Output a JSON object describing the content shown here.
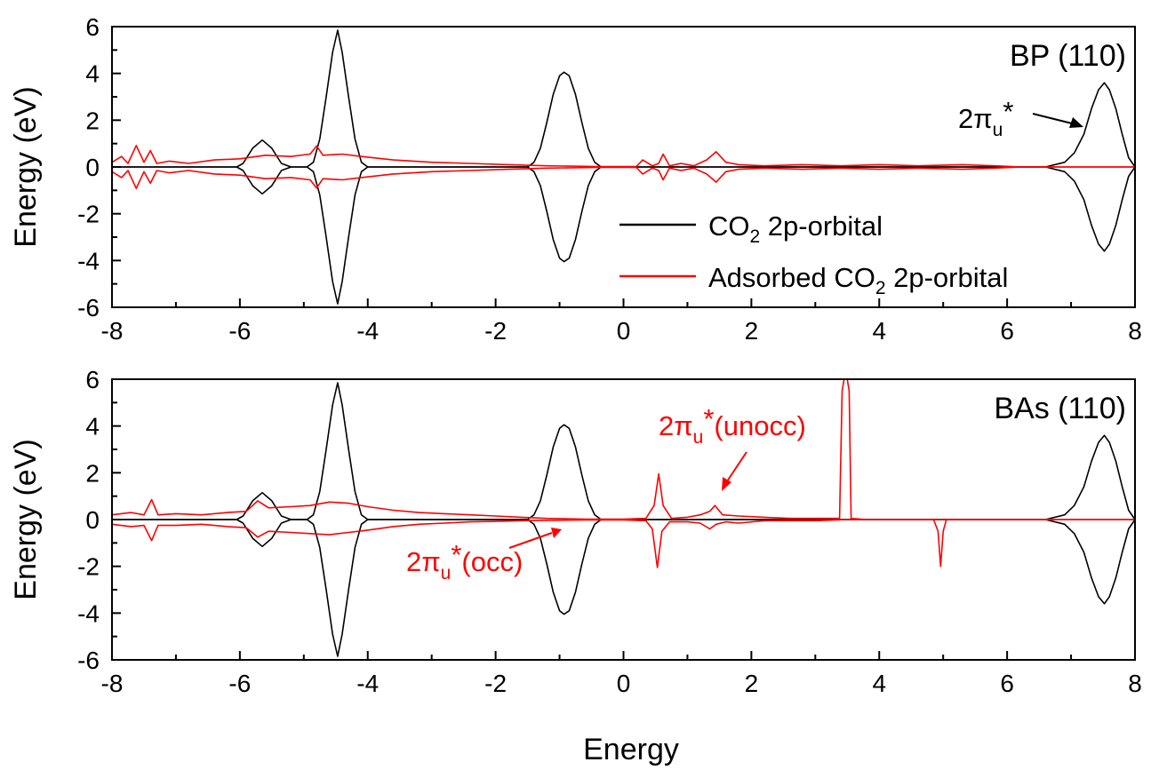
{
  "figure": {
    "xlabel": "Energy"
  },
  "chart_data": [
    {
      "type": "line",
      "title": "BP (110)",
      "xlabel": "",
      "ylabel": "Energy (eV)",
      "xlim": [
        -8,
        8
      ],
      "ylim": [
        -6,
        6
      ],
      "x_ticks": [
        -8,
        -6,
        -4,
        -2,
        0,
        2,
        4,
        6,
        8
      ],
      "y_ticks": [
        -6,
        -4,
        -2,
        0,
        2,
        4,
        6
      ],
      "grid": false,
      "legend_position": "lower-right",
      "series": [
        {
          "name": "CO2 2p-orbital",
          "color": "#000000",
          "symmetric_about_zero": true,
          "points": [
            [
              -8,
              0
            ],
            [
              -6.05,
              0
            ],
            [
              -5.95,
              0.15
            ],
            [
              -5.8,
              0.8
            ],
            [
              -5.65,
              1.15
            ],
            [
              -5.5,
              0.8
            ],
            [
              -5.35,
              0.15
            ],
            [
              -5.2,
              0
            ],
            [
              -4.95,
              0
            ],
            [
              -4.85,
              0.2
            ],
            [
              -4.75,
              1.2
            ],
            [
              -4.65,
              3.0
            ],
            [
              -4.55,
              4.9
            ],
            [
              -4.47,
              5.85
            ],
            [
              -4.4,
              4.9
            ],
            [
              -4.3,
              3.0
            ],
            [
              -4.2,
              1.2
            ],
            [
              -4.1,
              0.2
            ],
            [
              -4.0,
              0
            ],
            [
              -1.5,
              0
            ],
            [
              -1.4,
              0.2
            ],
            [
              -1.3,
              0.8
            ],
            [
              -1.2,
              1.9
            ],
            [
              -1.1,
              3.1
            ],
            [
              -1.0,
              3.9
            ],
            [
              -0.93,
              4.05
            ],
            [
              -0.85,
              3.9
            ],
            [
              -0.75,
              3.1
            ],
            [
              -0.65,
              1.9
            ],
            [
              -0.55,
              0.8
            ],
            [
              -0.45,
              0.2
            ],
            [
              -0.35,
              0
            ],
            [
              6.6,
              0
            ],
            [
              6.9,
              0.2
            ],
            [
              7.05,
              0.6
            ],
            [
              7.2,
              1.4
            ],
            [
              7.32,
              2.5
            ],
            [
              7.43,
              3.3
            ],
            [
              7.52,
              3.6
            ],
            [
              7.6,
              3.3
            ],
            [
              7.7,
              2.5
            ],
            [
              7.8,
              1.4
            ],
            [
              7.9,
              0.4
            ],
            [
              8.0,
              0
            ]
          ]
        },
        {
          "name": "Adsorbed CO2 2p-orbital",
          "color": "#ff0000",
          "symmetric_about_zero": true,
          "points": [
            [
              -8,
              0.2
            ],
            [
              -7.85,
              0.45
            ],
            [
              -7.75,
              0.15
            ],
            [
              -7.62,
              0.92
            ],
            [
              -7.5,
              0.2
            ],
            [
              -7.4,
              0.7
            ],
            [
              -7.3,
              0.15
            ],
            [
              -7.1,
              0.25
            ],
            [
              -6.8,
              0.15
            ],
            [
              -6.4,
              0.3
            ],
            [
              -6.0,
              0.35
            ],
            [
              -5.6,
              0.5
            ],
            [
              -5.2,
              0.45
            ],
            [
              -4.9,
              0.55
            ],
            [
              -4.8,
              0.9
            ],
            [
              -4.7,
              0.5
            ],
            [
              -4.4,
              0.55
            ],
            [
              -4.1,
              0.45
            ],
            [
              -3.6,
              0.3
            ],
            [
              -3.0,
              0.2
            ],
            [
              -2.4,
              0.15
            ],
            [
              -1.8,
              0.1
            ],
            [
              -1.2,
              0.05
            ],
            [
              -0.4,
              0.02
            ],
            [
              0.2,
              0.02
            ],
            [
              0.3,
              0.3
            ],
            [
              0.45,
              0.05
            ],
            [
              0.55,
              0.15
            ],
            [
              0.62,
              0.55
            ],
            [
              0.72,
              0.05
            ],
            [
              0.9,
              0.15
            ],
            [
              1.1,
              0.05
            ],
            [
              1.3,
              0.3
            ],
            [
              1.45,
              0.65
            ],
            [
              1.6,
              0.2
            ],
            [
              1.8,
              0.1
            ],
            [
              2.2,
              0.05
            ],
            [
              2.8,
              0.1
            ],
            [
              3.4,
              0.05
            ],
            [
              4.0,
              0.1
            ],
            [
              4.6,
              0.05
            ],
            [
              5.3,
              0.1
            ],
            [
              5.8,
              0.05
            ],
            [
              6.2,
              0
            ],
            [
              8.0,
              0
            ]
          ]
        }
      ],
      "annotations": [
        {
          "text": "2πu*",
          "points_to": [
            7.3,
            1.7
          ],
          "color": "#000000"
        }
      ]
    },
    {
      "type": "line",
      "title": "BAs (110)",
      "xlabel": "Energy",
      "ylabel": "Energy (eV)",
      "xlim": [
        -8,
        8
      ],
      "ylim": [
        -6,
        6
      ],
      "x_ticks": [
        -8,
        -6,
        -4,
        -2,
        0,
        2,
        4,
        6,
        8
      ],
      "y_ticks": [
        -6,
        -4,
        -2,
        0,
        2,
        4,
        6
      ],
      "grid": false,
      "series": [
        {
          "name": "CO2 2p-orbital",
          "color": "#000000",
          "symmetric_about_zero": true,
          "points": [
            [
              -8,
              0
            ],
            [
              -6.05,
              0
            ],
            [
              -5.95,
              0.15
            ],
            [
              -5.8,
              0.8
            ],
            [
              -5.65,
              1.15
            ],
            [
              -5.5,
              0.8
            ],
            [
              -5.35,
              0.15
            ],
            [
              -5.2,
              0
            ],
            [
              -4.95,
              0
            ],
            [
              -4.85,
              0.2
            ],
            [
              -4.75,
              1.2
            ],
            [
              -4.65,
              3.0
            ],
            [
              -4.55,
              4.9
            ],
            [
              -4.47,
              5.85
            ],
            [
              -4.4,
              4.9
            ],
            [
              -4.3,
              3.0
            ],
            [
              -4.2,
              1.2
            ],
            [
              -4.1,
              0.2
            ],
            [
              -4.0,
              0
            ],
            [
              -1.5,
              0
            ],
            [
              -1.4,
              0.2
            ],
            [
              -1.3,
              0.8
            ],
            [
              -1.2,
              1.9
            ],
            [
              -1.1,
              3.1
            ],
            [
              -1.0,
              3.9
            ],
            [
              -0.93,
              4.05
            ],
            [
              -0.85,
              3.9
            ],
            [
              -0.75,
              3.1
            ],
            [
              -0.65,
              1.9
            ],
            [
              -0.55,
              0.8
            ],
            [
              -0.45,
              0.2
            ],
            [
              -0.35,
              0
            ],
            [
              6.6,
              0
            ],
            [
              6.9,
              0.2
            ],
            [
              7.05,
              0.6
            ],
            [
              7.2,
              1.4
            ],
            [
              7.32,
              2.5
            ],
            [
              7.43,
              3.3
            ],
            [
              7.52,
              3.6
            ],
            [
              7.6,
              3.3
            ],
            [
              7.7,
              2.5
            ],
            [
              7.8,
              1.4
            ],
            [
              7.9,
              0.4
            ],
            [
              8.0,
              0
            ]
          ]
        },
        {
          "name": "Adsorbed CO2 2p-orbital",
          "color": "#ff0000",
          "symmetric_about_zero": false,
          "points_up": [
            [
              -8,
              0.2
            ],
            [
              -7.7,
              0.3
            ],
            [
              -7.5,
              0.2
            ],
            [
              -7.38,
              0.85
            ],
            [
              -7.28,
              0.2
            ],
            [
              -7.0,
              0.25
            ],
            [
              -6.6,
              0.2
            ],
            [
              -6.2,
              0.3
            ],
            [
              -5.9,
              0.35
            ],
            [
              -5.72,
              0.8
            ],
            [
              -5.55,
              0.5
            ],
            [
              -5.2,
              0.55
            ],
            [
              -4.9,
              0.6
            ],
            [
              -4.6,
              0.75
            ],
            [
              -4.3,
              0.7
            ],
            [
              -4.0,
              0.55
            ],
            [
              -3.6,
              0.4
            ],
            [
              -3.2,
              0.3
            ],
            [
              -2.8,
              0.25
            ],
            [
              -2.4,
              0.2
            ],
            [
              -2.0,
              0.15
            ],
            [
              -1.6,
              0.1
            ],
            [
              -1.2,
              0.05
            ],
            [
              -0.6,
              0.02
            ],
            [
              0.0,
              0.02
            ],
            [
              0.35,
              0.05
            ],
            [
              0.48,
              0.6
            ],
            [
              0.55,
              1.95
            ],
            [
              0.62,
              0.6
            ],
            [
              0.75,
              0.05
            ],
            [
              1.0,
              0.1
            ],
            [
              1.2,
              0.2
            ],
            [
              1.35,
              0.35
            ],
            [
              1.43,
              0.6
            ],
            [
              1.55,
              0.2
            ],
            [
              1.8,
              0.15
            ],
            [
              2.2,
              0.1
            ],
            [
              2.6,
              0.05
            ],
            [
              3.0,
              0.05
            ],
            [
              3.38,
              0.05
            ],
            [
              3.42,
              5.5
            ],
            [
              3.45,
              6.0
            ],
            [
              3.5,
              6.0
            ],
            [
              3.53,
              5.5
            ],
            [
              3.56,
              0.05
            ],
            [
              3.8,
              0
            ],
            [
              5.0,
              0
            ],
            [
              5.5,
              0
            ],
            [
              8.0,
              0
            ]
          ],
          "points_down": [
            [
              -8,
              -0.2
            ],
            [
              -7.7,
              -0.3
            ],
            [
              -7.5,
              -0.25
            ],
            [
              -7.38,
              -0.9
            ],
            [
              -7.28,
              -0.25
            ],
            [
              -7.0,
              -0.25
            ],
            [
              -6.6,
              -0.2
            ],
            [
              -6.2,
              -0.3
            ],
            [
              -5.9,
              -0.35
            ],
            [
              -5.72,
              -0.75
            ],
            [
              -5.55,
              -0.5
            ],
            [
              -5.2,
              -0.55
            ],
            [
              -4.9,
              -0.6
            ],
            [
              -4.6,
              -0.65
            ],
            [
              -4.3,
              -0.55
            ],
            [
              -4.0,
              -0.45
            ],
            [
              -3.6,
              -0.3
            ],
            [
              -3.2,
              -0.2
            ],
            [
              -2.8,
              -0.15
            ],
            [
              -2.4,
              -0.1
            ],
            [
              -2.0,
              -0.08
            ],
            [
              -1.6,
              -0.05
            ],
            [
              -1.2,
              -0.03
            ],
            [
              -0.6,
              -0.02
            ],
            [
              0.0,
              -0.02
            ],
            [
              0.35,
              -0.05
            ],
            [
              0.45,
              -0.4
            ],
            [
              0.53,
              -2.05
            ],
            [
              0.6,
              -0.5
            ],
            [
              0.72,
              -0.1
            ],
            [
              1.0,
              -0.1
            ],
            [
              1.2,
              -0.15
            ],
            [
              1.35,
              -0.4
            ],
            [
              1.45,
              -0.2
            ],
            [
              1.6,
              -0.1
            ],
            [
              1.8,
              -0.15
            ],
            [
              2.2,
              -0.05
            ],
            [
              2.6,
              -0.05
            ],
            [
              3.0,
              -0.05
            ],
            [
              3.5,
              0
            ],
            [
              4.85,
              0
            ],
            [
              4.92,
              -0.5
            ],
            [
              4.96,
              -2.0
            ],
            [
              5.0,
              -0.5
            ],
            [
              5.05,
              0
            ],
            [
              5.5,
              0
            ],
            [
              8.0,
              0
            ]
          ]
        }
      ],
      "annotations": [
        {
          "text": "2πu*(unocc)",
          "points_to": [
            1.45,
            1.1
          ],
          "color": "#ff0000"
        },
        {
          "text": "2πu*(occ)",
          "points_to": [
            -1.1,
            -0.45
          ],
          "color": "#ff0000"
        }
      ]
    }
  ]
}
